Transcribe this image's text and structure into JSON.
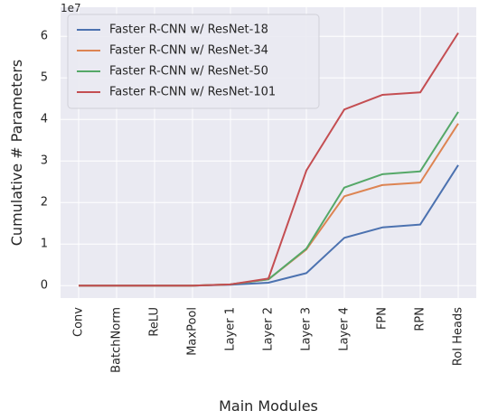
{
  "chart_data": {
    "type": "line",
    "x_label": "Main Modules",
    "y_label": "Cumulative # Parameters",
    "y_offset_label": "1e7",
    "categories": [
      "Conv",
      "BatchNorm",
      "ReLU",
      "MaxPool",
      "Layer 1",
      "Layer 2",
      "Layer 3",
      "Layer 4",
      "FPN",
      "RPN",
      "RoI Heads"
    ],
    "series": [
      {
        "name": "Faster R-CNN w/ ResNet-18",
        "color": "#4c72b0",
        "values": [
          0,
          0,
          0,
          0,
          0.02,
          0.07,
          0.3,
          1.15,
          1.4,
          1.47,
          2.9
        ]
      },
      {
        "name": "Faster R-CNN w/ ResNet-34",
        "color": "#dd8452",
        "values": [
          0,
          0,
          0,
          0,
          0.03,
          0.15,
          0.87,
          2.15,
          2.42,
          2.48,
          3.9
        ]
      },
      {
        "name": "Faster R-CNN w/ ResNet-50",
        "color": "#55a868",
        "values": [
          0,
          0,
          0,
          0,
          0.03,
          0.15,
          0.89,
          2.36,
          2.68,
          2.75,
          4.18
        ]
      },
      {
        "name": "Faster R-CNN w/ ResNet-101",
        "color": "#c44e52",
        "values": [
          0,
          0,
          0,
          0,
          0.03,
          0.17,
          2.77,
          4.24,
          4.59,
          4.65,
          6.08
        ]
      }
    ],
    "ylim": [
      -0.3,
      6.7
    ],
    "yticks": [
      0,
      1,
      2,
      3,
      4,
      5,
      6
    ],
    "grid": true,
    "legend": "upper left"
  }
}
